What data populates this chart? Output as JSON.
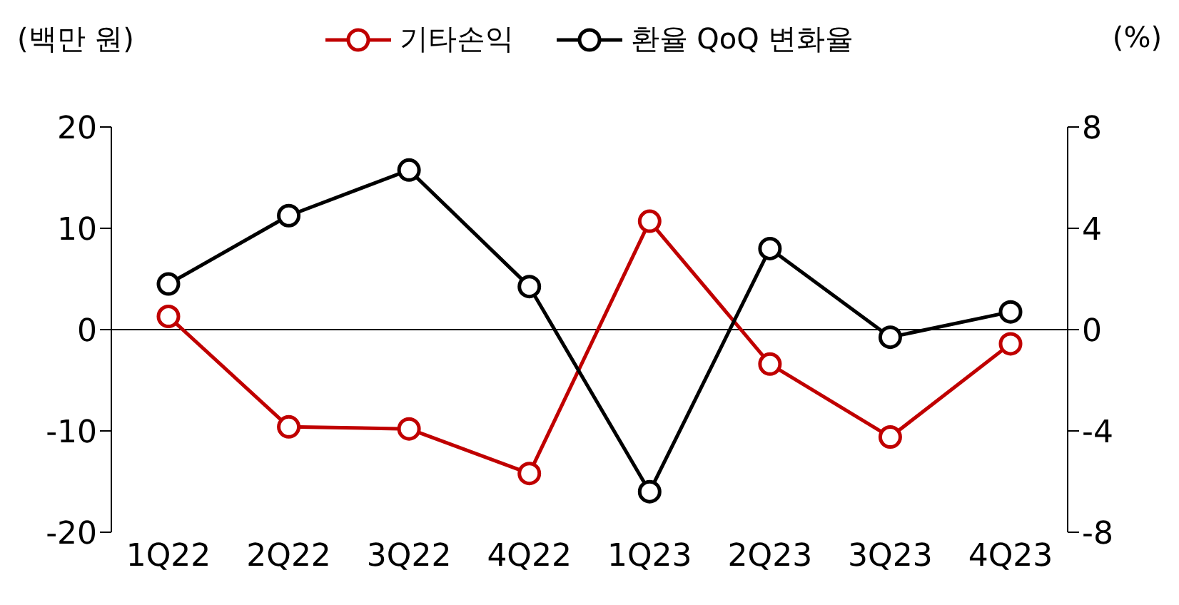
{
  "chart_data": {
    "type": "line",
    "ylabel": "(백만 원)",
    "y2label": "(%)",
    "categories": [
      "1Q22",
      "2Q22",
      "3Q22",
      "4Q22",
      "1Q23",
      "2Q23",
      "3Q23",
      "4Q23"
    ],
    "series": [
      {
        "name": "기타손익",
        "color": "#c00000",
        "values": [
          1.3,
          -9.6,
          -9.8,
          -14.2,
          10.7,
          -3.4,
          -10.6,
          -1.4
        ]
      },
      {
        "name": "환율 QoQ 변화율",
        "color": "#000000",
        "axis": "y2",
        "values": [
          1.8,
          4.5,
          6.3,
          1.7,
          -6.4,
          3.2,
          -0.3,
          0.7
        ]
      }
    ],
    "ylim": [
      -20,
      20
    ],
    "yticks": [
      -20,
      -10,
      0,
      10,
      20
    ],
    "y2lim": [
      -8,
      8
    ],
    "y2ticks": [
      -8,
      -4,
      0,
      4,
      8
    ],
    "ref_lines": [
      {
        "axis": "y",
        "value": 0,
        "color": "#000000"
      }
    ],
    "grid": false,
    "legend": "top",
    "marker": "circle",
    "line_style": "solid"
  }
}
